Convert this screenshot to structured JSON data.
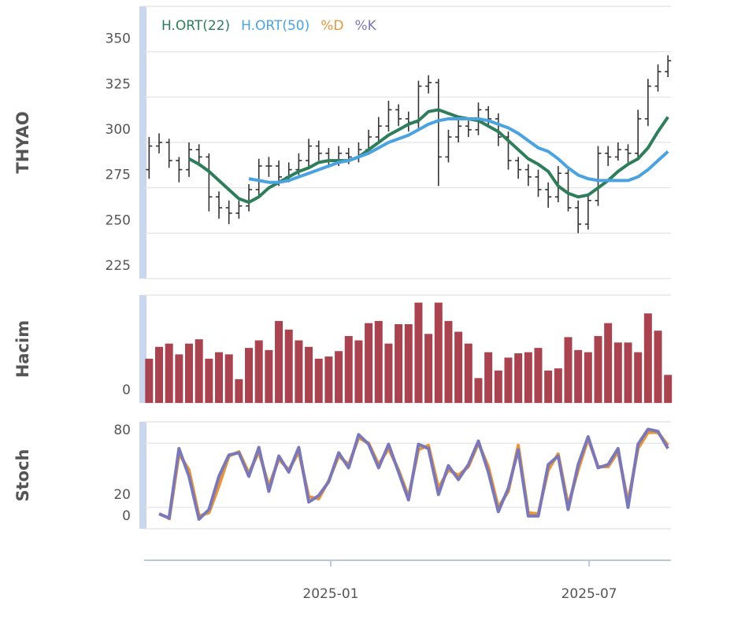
{
  "chart_data": [
    {
      "type": "ohlc",
      "ylabel": "THYAO",
      "color": "#333333",
      "open": [
        285,
        298,
        300,
        290,
        285,
        296,
        292,
        270,
        264,
        261,
        265,
        274,
        287,
        287,
        281,
        285,
        290,
        298,
        294,
        290,
        294,
        292,
        296,
        303,
        309,
        318,
        313,
        311,
        331,
        333,
        292,
        303,
        309,
        307,
        318,
        313,
        303,
        290,
        285,
        281,
        274,
        270,
        283,
        264,
        255,
        268,
        294,
        292,
        296,
        294,
        313,
        331,
        339
      ],
      "high": [
        303,
        305,
        302,
        292,
        300,
        299,
        294,
        273,
        268,
        268,
        277,
        291,
        292,
        290,
        289,
        294,
        302,
        301,
        297,
        298,
        297,
        300,
        307,
        314,
        323,
        321,
        317,
        334,
        337,
        335,
        307,
        313,
        312,
        322,
        320,
        316,
        306,
        292,
        288,
        285,
        278,
        287,
        285,
        268,
        271,
        298,
        298,
        300,
        299,
        318,
        335,
        343,
        348
      ],
      "low": [
        280,
        294,
        286,
        278,
        281,
        288,
        262,
        258,
        255,
        258,
        262,
        271,
        281,
        276,
        278,
        282,
        286,
        290,
        286,
        287,
        288,
        289,
        294,
        300,
        306,
        309,
        306,
        308,
        327,
        276,
        289,
        300,
        303,
        304,
        309,
        298,
        285,
        280,
        276,
        270,
        264,
        267,
        262,
        250,
        252,
        265,
        287,
        290,
        289,
        290,
        309,
        328,
        336
      ],
      "close": [
        298,
        300,
        290,
        285,
        296,
        292,
        270,
        264,
        261,
        265,
        274,
        287,
        287,
        281,
        285,
        290,
        298,
        294,
        290,
        294,
        292,
        296,
        303,
        309,
        318,
        313,
        311,
        331,
        333,
        292,
        303,
        309,
        307,
        318,
        313,
        303,
        290,
        285,
        281,
        274,
        270,
        283,
        264,
        255,
        268,
        294,
        292,
        296,
        294,
        313,
        331,
        339,
        345
      ],
      "series": [
        {
          "name": "H.ORT(22)",
          "color": "#2e7d5b",
          "values": [
            null,
            null,
            null,
            null,
            291,
            288,
            284,
            279,
            274,
            269,
            267,
            270,
            275,
            278,
            281,
            284,
            286,
            289,
            290,
            290,
            290,
            292,
            296,
            300,
            304,
            307,
            310,
            312,
            317,
            318,
            316,
            314,
            313,
            312,
            309,
            306,
            301,
            296,
            291,
            288,
            284,
            276,
            272,
            270,
            271,
            275,
            279,
            284,
            288,
            291,
            297,
            306,
            314
          ]
        },
        {
          "name": "H.ORT(50)",
          "color": "#4aa3e0",
          "values": [
            null,
            null,
            null,
            null,
            null,
            null,
            null,
            null,
            null,
            null,
            280,
            279,
            278,
            278,
            279,
            281,
            283,
            285,
            287,
            289,
            290,
            292,
            294,
            297,
            300,
            302,
            304,
            307,
            310,
            312,
            313,
            313,
            313,
            313,
            312,
            310,
            308,
            305,
            301,
            297,
            295,
            291,
            286,
            282,
            280,
            279,
            279,
            279,
            279,
            281,
            285,
            290,
            295
          ]
        }
      ],
      "ylim": [
        225,
        375
      ],
      "yticks": [
        225,
        250,
        275,
        300,
        325,
        350
      ],
      "xlim": [
        -0.5,
        52.3
      ],
      "grid": true
    },
    {
      "type": "bar",
      "ylabel": "Hacim",
      "color": "#a8434f",
      "values": [
        41,
        52,
        55,
        45,
        55,
        59,
        41,
        47,
        45,
        22,
        51,
        58,
        49,
        76,
        68,
        58,
        52,
        41,
        43,
        48,
        62,
        58,
        74,
        76,
        55,
        73,
        73,
        93,
        64,
        93,
        76,
        66,
        55,
        23,
        47,
        30,
        42,
        46,
        47,
        51,
        30,
        32,
        61,
        49,
        47,
        62,
        74,
        56,
        56,
        47,
        83,
        67,
        26
      ],
      "ylim": [
        0,
        100
      ],
      "yticks": [
        0
      ],
      "xlim": [
        -0.5,
        52.3
      ],
      "grid": true
    },
    {
      "type": "line",
      "ylabel": "Stoch",
      "series": [
        {
          "name": "%D",
          "color": "#e8963c",
          "values": [
            null,
            null,
            8,
            70,
            55,
            12,
            15,
            40,
            68,
            72,
            52,
            72,
            40,
            65,
            55,
            72,
            30,
            28,
            45,
            68,
            60,
            85,
            80,
            60,
            75,
            55,
            30,
            74,
            78,
            38,
            55,
            50,
            58,
            80,
            58,
            20,
            35,
            78,
            15,
            14,
            55,
            70,
            22,
            55,
            84,
            58,
            58,
            72,
            25,
            75,
            90,
            90,
            78
          ]
        },
        {
          "name": "%K",
          "color": "#7b78b8",
          "values": [
            null,
            14,
            10,
            75,
            49,
            9,
            18,
            49,
            69,
            71,
            49,
            76,
            35,
            68,
            53,
            76,
            25,
            31,
            44,
            71,
            57,
            88,
            79,
            57,
            79,
            53,
            27,
            79,
            75,
            32,
            59,
            46,
            60,
            82,
            53,
            16,
            38,
            74,
            12,
            12,
            60,
            68,
            18,
            60,
            86,
            57,
            60,
            75,
            20,
            79,
            93,
            91,
            75
          ]
        }
      ],
      "ylim": [
        0,
        100
      ],
      "yticks": [
        0,
        20,
        80
      ],
      "xlim": [
        -0.5,
        52.3
      ],
      "xticks": [
        {
          "value": 18.2,
          "label": "2025-01"
        },
        {
          "value": 44.1,
          "label": "2025-07"
        }
      ],
      "grid": true
    }
  ]
}
